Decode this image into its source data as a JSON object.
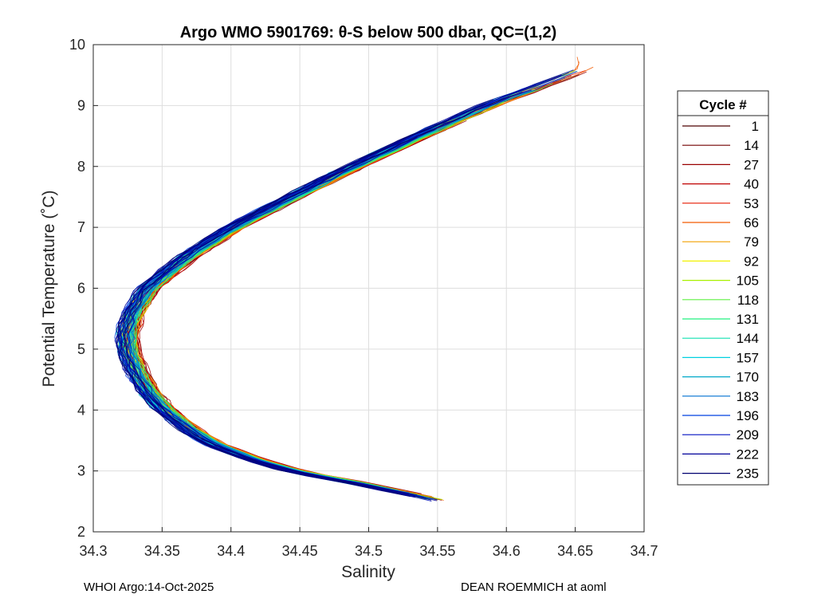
{
  "chart_data": {
    "type": "line",
    "title": "Argo WMO 5901769: θ-S below 500 dbar,  QC=(1,2)",
    "xlabel": "Salinity",
    "ylabel": "Potential Temperature (˚C)",
    "xlim": [
      34.3,
      34.7
    ],
    "ylim": [
      2,
      10
    ],
    "xticks": [
      "34.3",
      "34.35",
      "34.4",
      "34.45",
      "34.5",
      "34.55",
      "34.6",
      "34.65",
      "34.7"
    ],
    "yticks": [
      "2",
      "3",
      "4",
      "5",
      "6",
      "7",
      "8",
      "9",
      "10"
    ],
    "grid": true,
    "legend_title": "Cycle #",
    "legend_placement": "right",
    "series": [
      {
        "name": "1",
        "color": "#4d0000"
      },
      {
        "name": "14",
        "color": "#730000"
      },
      {
        "name": "27",
        "color": "#990000"
      },
      {
        "name": "40",
        "color": "#c00000"
      },
      {
        "name": "53",
        "color": "#e61a00"
      },
      {
        "name": "66",
        "color": "#f25a00"
      },
      {
        "name": "79",
        "color": "#f2a000"
      },
      {
        "name": "92",
        "color": "#f2f200"
      },
      {
        "name": "105",
        "color": "#a8f000"
      },
      {
        "name": "118",
        "color": "#5ef040"
      },
      {
        "name": "131",
        "color": "#20f080"
      },
      {
        "name": "144",
        "color": "#10e0b0"
      },
      {
        "name": "157",
        "color": "#00d0e0"
      },
      {
        "name": "170",
        "color": "#00a8c8"
      },
      {
        "name": "183",
        "color": "#0070d0"
      },
      {
        "name": "196",
        "color": "#0040e0"
      },
      {
        "name": "209",
        "color": "#0010c0"
      },
      {
        "name": "222",
        "color": "#00009a"
      },
      {
        "name": "235",
        "color": "#000070"
      }
    ],
    "profile_shape": {
      "theta": [
        2.5,
        2.6,
        2.7,
        2.8,
        2.9,
        3.0,
        3.2,
        3.4,
        3.6,
        3.8,
        4.0,
        4.3,
        4.6,
        5.0,
        5.3,
        5.6,
        6.0,
        6.5,
        7.0,
        7.5,
        8.0,
        8.5,
        9.0,
        9.3,
        9.6
      ],
      "salinity": [
        34.555,
        34.538,
        34.515,
        34.495,
        34.47,
        34.448,
        34.418,
        34.395,
        34.378,
        34.366,
        34.355,
        34.343,
        34.335,
        34.328,
        34.328,
        34.332,
        34.343,
        34.37,
        34.405,
        34.448,
        34.492,
        34.54,
        34.59,
        34.625,
        34.66
      ]
    }
  },
  "footer": {
    "left": "WHOI Argo:14-Oct-2025",
    "right": "DEAN ROEMMICH at aoml"
  }
}
